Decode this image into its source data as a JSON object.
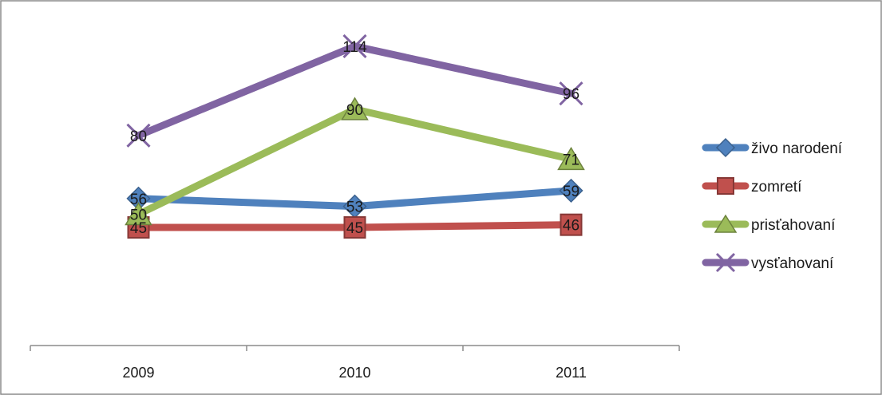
{
  "chart_data": {
    "type": "line",
    "title": "",
    "xlabel": "",
    "ylabel": "",
    "categories": [
      "2009",
      "2010",
      "2011"
    ],
    "ylim": [
      0,
      130
    ],
    "grid": false,
    "legend_position": "right",
    "series": [
      {
        "name": "živo narodení",
        "values": [
          56,
          53,
          59
        ],
        "color": "#4F81BD",
        "marker": "diamond"
      },
      {
        "name": "zomretí",
        "values": [
          45,
          45,
          46
        ],
        "color": "#C0504D",
        "marker": "square"
      },
      {
        "name": "prisťahovaní",
        "values": [
          50,
          90,
          71
        ],
        "color": "#9BBB59",
        "marker": "triangle"
      },
      {
        "name": "vysťahovaní",
        "values": [
          80,
          114,
          96
        ],
        "color": "#8064A2",
        "marker": "x"
      }
    ]
  }
}
